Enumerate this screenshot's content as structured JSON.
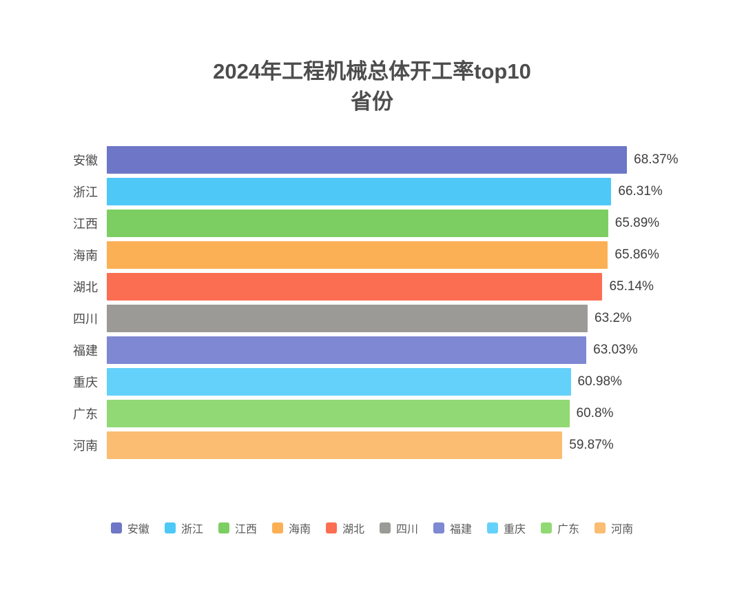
{
  "title": {
    "line1": "2024年工程机械总体开工率top10",
    "line2": "省份"
  },
  "chart_data": {
    "type": "bar",
    "orientation": "horizontal",
    "title": "2024年工程机械总体开工率top10 省份",
    "categories": [
      "安徽",
      "浙江",
      "江西",
      "海南",
      "湖北",
      "四川",
      "福建",
      "重庆",
      "广东",
      "河南"
    ],
    "values": [
      68.37,
      66.31,
      65.89,
      65.86,
      65.14,
      63.2,
      63.03,
      60.98,
      60.8,
      59.87
    ],
    "value_labels": [
      "68.37%",
      "66.31%",
      "65.89%",
      "65.86%",
      "65.14%",
      "63.2%",
      "63.03%",
      "60.98%",
      "60.8%",
      "59.87%"
    ],
    "bar_colors": [
      "#6D76C7",
      "#4EC9F7",
      "#7DCE62",
      "#FBB055",
      "#FB6E51",
      "#9C9A96",
      "#7F88D3",
      "#64D1FA",
      "#90D974",
      "#FBBD72"
    ],
    "unit": "%",
    "xlim": [
      0,
      75.6
    ],
    "grid": false,
    "legend_position": "bottom",
    "text_colors": {
      "title": "#4d4d4d",
      "category": "#4a4a4a",
      "value": "#3d3d3d",
      "legend": "#595959"
    }
  }
}
